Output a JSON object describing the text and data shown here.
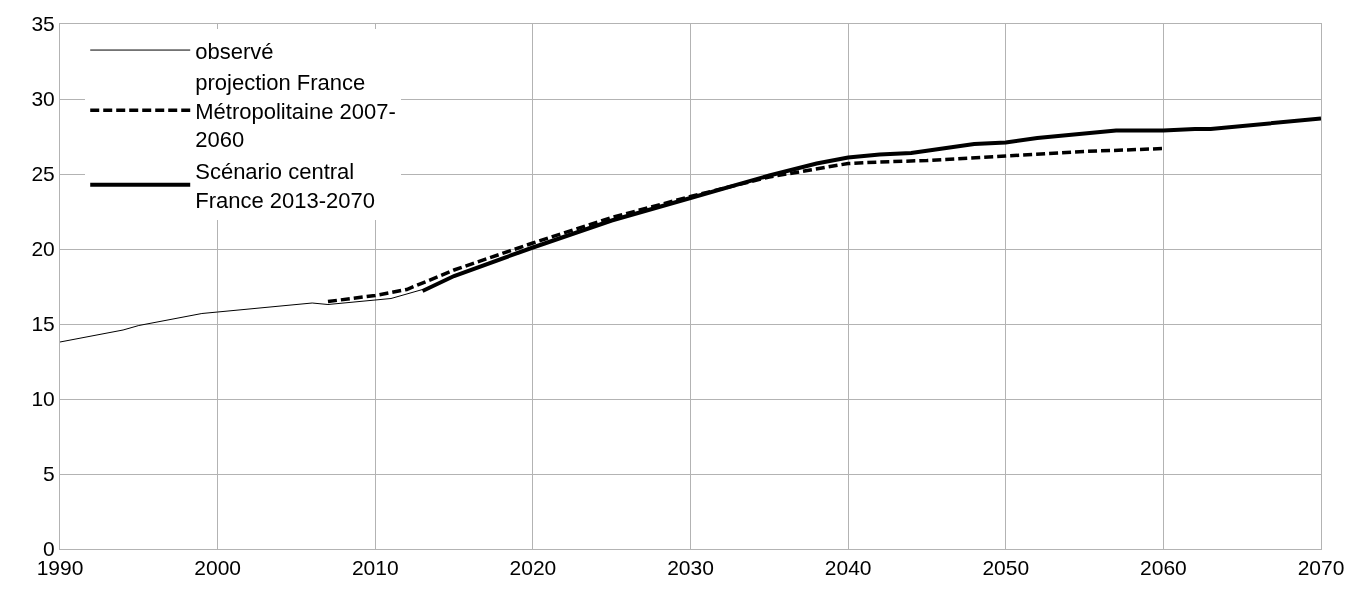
{
  "chart_data": {
    "type": "line",
    "xlim": [
      1990,
      2070
    ],
    "xticks": [
      1990,
      2000,
      2010,
      2020,
      2030,
      2040,
      2050,
      2060,
      2070
    ],
    "ylim": [
      0,
      35
    ],
    "yticks": [
      0,
      5,
      10,
      15,
      20,
      25,
      30,
      35
    ],
    "grid": true,
    "legend": "top left",
    "marker": "none",
    "series": [
      {
        "name": "observé",
        "color": "#000000",
        "line_style": "solid",
        "x": [
          1990,
          1994,
          1995,
          1999,
          2000,
          2006,
          2007,
          2011,
          2013
        ],
        "values": [
          13.8,
          14.6,
          14.9,
          15.7,
          15.8,
          16.4,
          16.3,
          16.7,
          17.3
        ]
      },
      {
        "name": "projection France Métropolitaine 2007-2060",
        "color": "#000000",
        "line_style": "dashed",
        "x": [
          2007,
          2010,
          2012,
          2015,
          2020,
          2025,
          2030,
          2035,
          2040,
          2042,
          2045,
          2050,
          2055,
          2060
        ],
        "values": [
          16.5,
          16.9,
          17.3,
          18.6,
          20.4,
          22.1,
          23.5,
          24.8,
          25.7,
          25.8,
          25.9,
          26.2,
          26.5,
          26.7
        ]
      },
      {
        "name": "Scénario central France 2013-2070",
        "color": "#000000",
        "line_style": "solid",
        "x": [
          2013,
          2015,
          2020,
          2025,
          2030,
          2035,
          2038,
          2040,
          2042,
          2044,
          2046,
          2048,
          2050,
          2052,
          2057,
          2060,
          2062,
          2063,
          2070
        ],
        "values": [
          17.2,
          18.2,
          20.1,
          21.9,
          23.4,
          24.9,
          25.7,
          26.1,
          26.3,
          26.4,
          26.7,
          27.0,
          27.1,
          27.4,
          27.9,
          27.9,
          28.0,
          28.0,
          28.7
        ]
      }
    ]
  }
}
